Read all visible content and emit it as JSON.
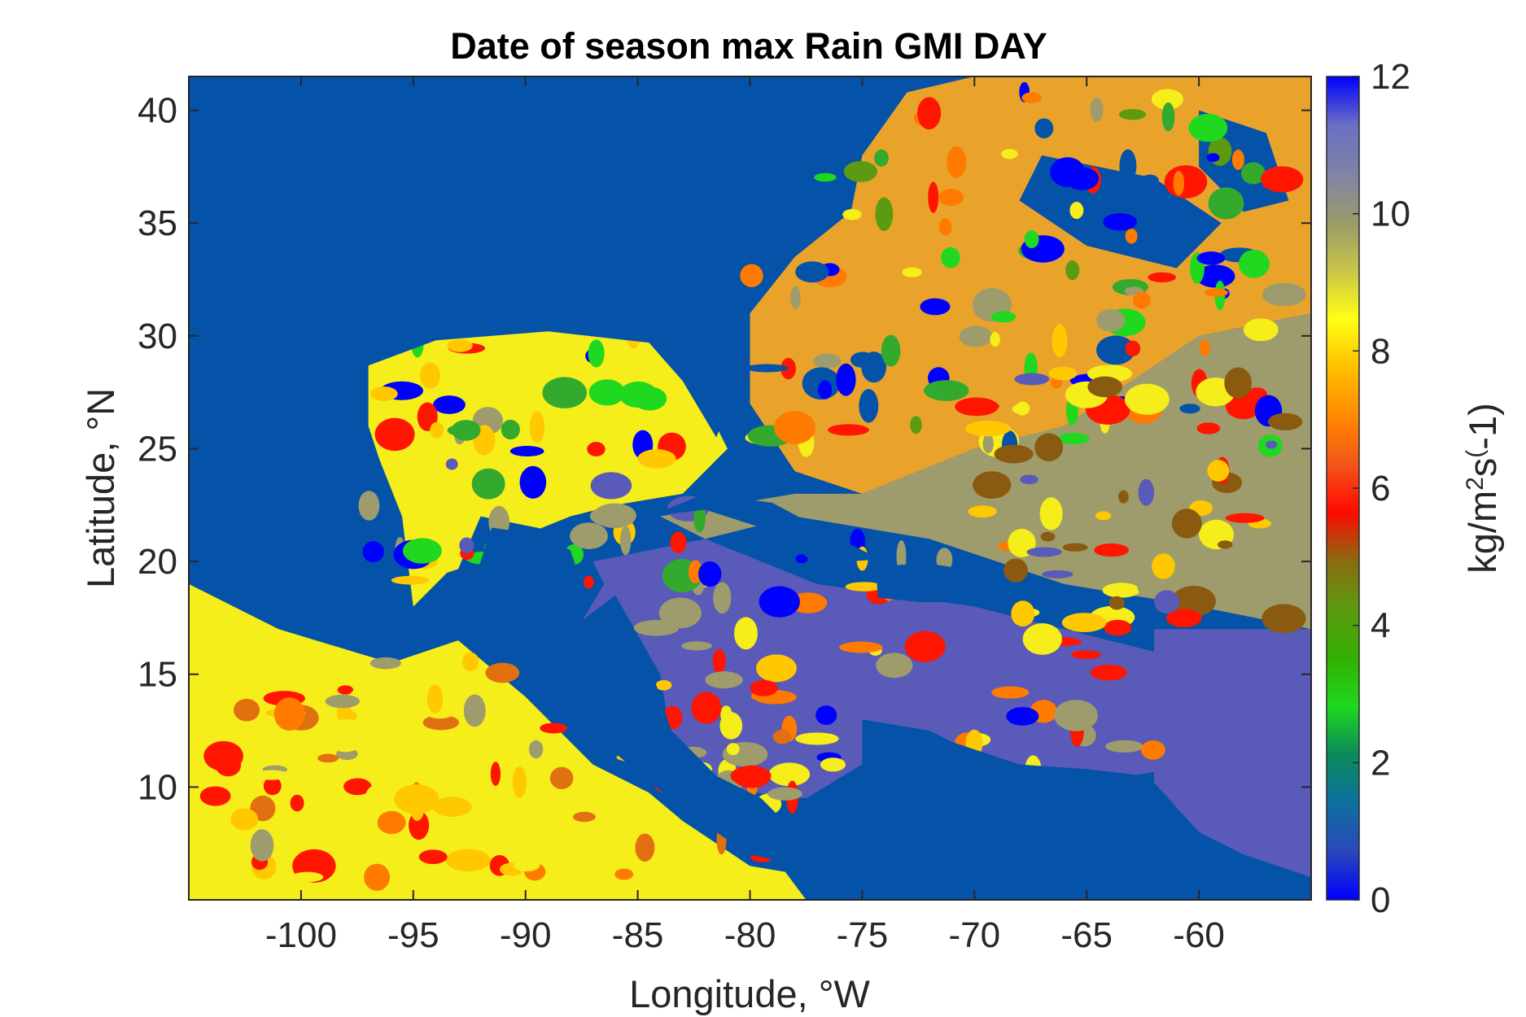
{
  "chart_data": {
    "type": "heatmap",
    "title": "Date of season max Rain GMI DAY",
    "xlabel": "Longitude, °W",
    "ylabel": "Latitude, °N",
    "xlim": [
      -105,
      -55
    ],
    "ylim": [
      5,
      41.5
    ],
    "xticks": [
      -100,
      -95,
      -90,
      -85,
      -80,
      -75,
      -70,
      -65,
      -60
    ],
    "yticks": [
      10,
      15,
      20,
      25,
      30,
      35,
      40
    ],
    "colorbar": {
      "label": "kg/m²s⁽-1)",
      "label_parts": [
        "kg/m",
        "2",
        "s",
        "(",
        "-1)"
      ],
      "range": [
        0,
        12
      ],
      "ticks": [
        0,
        2,
        4,
        6,
        8,
        10,
        12
      ],
      "colormap": [
        "#0000ff",
        "#2a48b8",
        "#0f6fa0",
        "#0b8a5a",
        "#1fd81f",
        "#33b000",
        "#5c9a12",
        "#8a6b10",
        "#ff0a00",
        "#f4561a",
        "#ff8a00",
        "#ffc000",
        "#ffff14",
        "#c8c44a",
        "#9a9a6a",
        "#7f83a8",
        "#6a6fc2",
        "#0000ff"
      ]
    },
    "background_color": "#0453a8",
    "dominant_land_colors": {
      "caribbean_sea": "#5a5ab8",
      "atlantic_east": "#9e9c6c",
      "south_america": "#f5ee1a",
      "red_patches": "#ff1500"
    }
  }
}
